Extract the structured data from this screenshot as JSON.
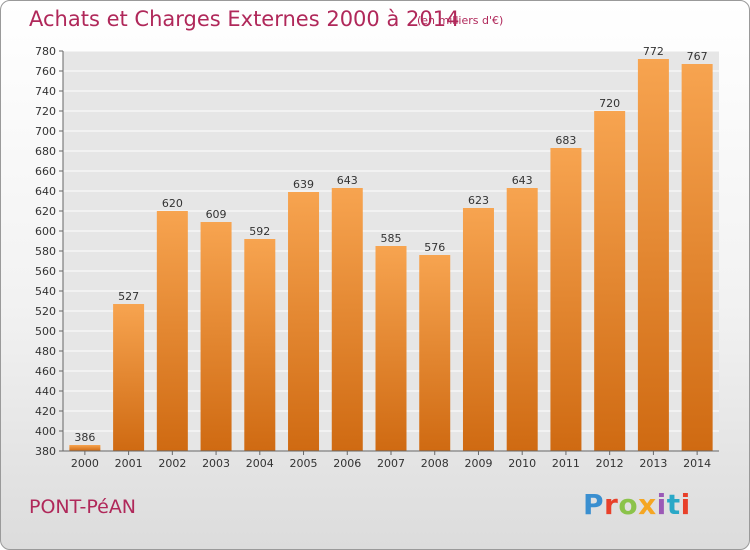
{
  "header": {
    "title": "Achats et Charges Externes 2000 à 2014",
    "unit": "(en milliers d'€)"
  },
  "footer": {
    "place": "PONT-PéAN",
    "brand": "Proxiti",
    "brand_colors": [
      "#3a8fd0",
      "#e8402a",
      "#8bc34a",
      "#f5a623",
      "#9b59b6",
      "#2aa8c7",
      "#e8402a"
    ]
  },
  "colors": {
    "title": "#b0285a",
    "bar_top": "#f7a450",
    "bar_bottom": "#cf6a12",
    "grid": "#ffffff",
    "plot_bg": "#e6e6e6"
  },
  "chart_data": {
    "type": "bar",
    "title": "Achats et Charges Externes 2000 à 2014",
    "subtitle": "(en milliers d'€)",
    "categories": [
      "2000",
      "2001",
      "2002",
      "2003",
      "2004",
      "2005",
      "2006",
      "2007",
      "2008",
      "2009",
      "2010",
      "2011",
      "2012",
      "2013",
      "2014"
    ],
    "values": [
      386,
      527,
      620,
      609,
      592,
      639,
      643,
      585,
      576,
      623,
      643,
      683,
      720,
      772,
      767
    ],
    "ylim": [
      380,
      780
    ],
    "yticks": [
      380,
      400,
      420,
      440,
      460,
      480,
      500,
      520,
      540,
      560,
      580,
      600,
      620,
      640,
      660,
      680,
      700,
      720,
      740,
      760,
      780
    ],
    "grid": true,
    "legend": "none"
  }
}
